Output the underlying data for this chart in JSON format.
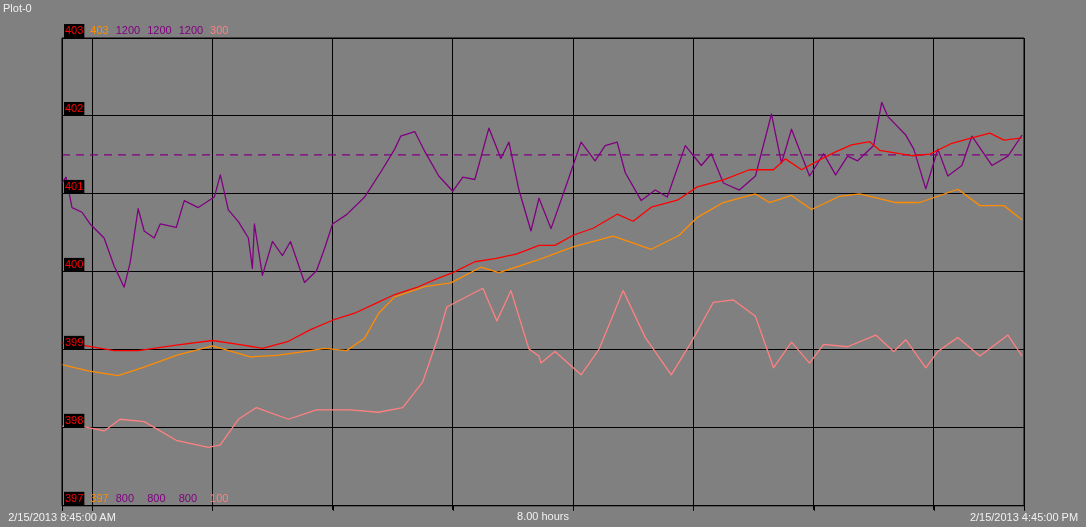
{
  "chart_data": {
    "type": "line",
    "title": "Plot-0",
    "xlabel": "8.00 hours",
    "grid": true,
    "legend": false,
    "marker": "none",
    "xlim": [
      "2013-02-15T08:45",
      "2013-02-15T16:45"
    ],
    "xticks": [
      {
        "value": "2013-02-15T08:45",
        "label": "2/15/2013 8:45:00 AM"
      },
      {
        "value": "2013-02-15T09:00",
        "label": null
      },
      {
        "value": "2013-02-15T10:00",
        "label": null
      },
      {
        "value": "2013-02-15T11:00",
        "label": null
      },
      {
        "value": "2013-02-15T12:00",
        "label": null
      },
      {
        "value": "2013-02-15T13:00",
        "label": null
      },
      {
        "value": "2013-02-15T14:00",
        "label": null
      },
      {
        "value": "2013-02-15T15:00",
        "label": null
      },
      {
        "value": "2013-02-15T16:00",
        "label": null
      },
      {
        "value": "2013-02-15T16:45",
        "label": "2/15/2013 4:45:00 PM"
      }
    ],
    "ylim": [
      397,
      403
    ],
    "yticks": [
      397,
      398,
      399,
      400,
      401,
      402,
      403
    ],
    "y2lim": [
      800,
      1200
    ],
    "y2ticks": [
      800,
      1200
    ],
    "y3lim": [
      100,
      300
    ],
    "y3ticks": [
      100,
      300
    ],
    "annotations": [
      "403",
      "397",
      "1200",
      "800",
      "1200",
      "800"
    ],
    "series": [
      {
        "color": "#ff0000",
        "axis": "y",
        "line_style": "solid",
        "x": [
          "2013-02-15T08:45",
          "2013-02-15T08:55",
          "2013-02-15T09:11",
          "2013-02-15T09:23",
          "2013-02-15T09:42",
          "2013-02-15T10:00",
          "2013-02-15T10:13",
          "2013-02-15T10:25",
          "2013-02-15T10:38",
          "2013-02-15T10:49",
          "2013-02-15T11:00",
          "2013-02-15T11:11",
          "2013-02-15T11:21",
          "2013-02-15T11:31",
          "2013-02-15T11:42",
          "2013-02-15T11:51",
          "2013-02-15T12:00",
          "2013-02-15T12:11",
          "2013-02-15T12:21",
          "2013-02-15T12:32",
          "2013-02-15T12:43",
          "2013-02-15T12:51",
          "2013-02-15T13:00",
          "2013-02-15T13:10",
          "2013-02-15T13:22",
          "2013-02-15T13:30",
          "2013-02-15T13:39",
          "2013-02-15T13:52",
          "2013-02-15T14:02",
          "2013-02-15T14:15",
          "2013-02-15T14:28",
          "2013-02-15T14:40",
          "2013-02-15T14:46",
          "2013-02-15T14:54",
          "2013-02-15T15:04",
          "2013-02-15T15:11",
          "2013-02-15T15:19",
          "2013-02-15T15:28",
          "2013-02-15T15:33",
          "2013-02-15T15:49",
          "2013-02-15T15:58",
          "2013-02-15T16:09",
          "2013-02-15T16:19",
          "2013-02-15T16:28",
          "2013-02-15T16:35",
          "2013-02-15T16:44"
        ],
        "values": [
          399.09,
          399.06,
          398.99,
          398.99,
          399.06,
          399.12,
          399.07,
          399.02,
          399.11,
          399.26,
          399.38,
          399.47,
          399.59,
          399.71,
          399.8,
          399.9,
          399.99,
          400.13,
          400.17,
          400.23,
          400.34,
          400.34,
          400.47,
          400.56,
          400.74,
          400.65,
          400.83,
          400.92,
          401.09,
          401.18,
          401.31,
          401.31,
          401.45,
          401.31,
          401.45,
          401.54,
          401.63,
          401.67,
          401.56,
          401.49,
          401.51,
          401.65,
          401.72,
          401.78,
          401.69,
          401.72
        ]
      },
      {
        "color": "#ff8c00",
        "axis": "y",
        "line_style": "solid",
        "x": [
          "2013-02-15T08:45",
          "2013-02-15T08:58",
          "2013-02-15T09:13",
          "2013-02-15T09:26",
          "2013-02-15T09:42",
          "2013-02-15T10:00",
          "2013-02-15T10:19",
          "2013-02-15T10:32",
          "2013-02-15T10:44",
          "2013-02-15T10:56",
          "2013-02-15T11:07",
          "2013-02-15T11:16",
          "2013-02-15T11:23",
          "2013-02-15T11:31",
          "2013-02-15T11:46",
          "2013-02-15T11:59",
          "2013-02-15T12:14",
          "2013-02-15T12:23",
          "2013-02-15T12:41",
          "2013-02-15T13:00",
          "2013-02-15T13:20",
          "2013-02-15T13:39",
          "2013-02-15T13:53",
          "2013-02-15T14:02",
          "2013-02-15T14:15",
          "2013-02-15T14:31",
          "2013-02-15T14:38",
          "2013-02-15T14:49",
          "2013-02-15T14:59",
          "2013-02-15T15:13",
          "2013-02-15T15:23",
          "2013-02-15T15:41",
          "2013-02-15T15:53",
          "2013-02-15T16:12",
          "2013-02-15T16:23",
          "2013-02-15T16:35",
          "2013-02-15T16:44"
        ],
        "values": [
          398.81,
          398.73,
          398.67,
          398.78,
          398.93,
          399.05,
          398.91,
          398.93,
          398.97,
          399.02,
          398.99,
          399.15,
          399.47,
          399.68,
          399.81,
          399.86,
          400.06,
          399.99,
          400.14,
          400.32,
          400.46,
          400.29,
          400.47,
          400.7,
          400.89,
          401.0,
          400.89,
          400.98,
          400.8,
          400.97,
          401.0,
          400.89,
          400.89,
          401.06,
          400.85,
          400.85,
          400.67
        ]
      },
      {
        "color": "#800080",
        "axis": "y2",
        "line_style": "solid",
        "x": [
          "2013-02-15T08:45",
          "2013-02-15T08:47",
          "2013-02-15T08:50",
          "2013-02-15T08:55",
          "2013-02-15T08:59",
          "2013-02-15T09:06",
          "2013-02-15T09:11",
          "2013-02-15T09:16",
          "2013-02-15T09:19",
          "2013-02-15T09:23",
          "2013-02-15T09:26",
          "2013-02-15T09:31",
          "2013-02-15T09:34",
          "2013-02-15T09:42",
          "2013-02-15T09:46",
          "2013-02-15T09:53",
          "2013-02-15T10:01",
          "2013-02-15T10:04",
          "2013-02-15T10:08",
          "2013-02-15T10:13",
          "2013-02-15T10:18",
          "2013-02-15T10:20",
          "2013-02-15T10:21",
          "2013-02-15T10:25",
          "2013-02-15T10:30",
          "2013-02-15T10:35",
          "2013-02-15T10:39",
          "2013-02-15T10:46",
          "2013-02-15T10:52",
          "2013-02-15T10:56",
          "2013-02-15T11:00",
          "2013-02-15T11:07",
          "2013-02-15T11:16",
          "2013-02-15T11:25",
          "2013-02-15T11:31",
          "2013-02-15T11:34",
          "2013-02-15T11:41",
          "2013-02-15T11:46",
          "2013-02-15T11:53",
          "2013-02-15T12:00",
          "2013-02-15T12:05",
          "2013-02-15T12:11",
          "2013-02-15T12:18",
          "2013-02-15T12:24",
          "2013-02-15T12:28",
          "2013-02-15T12:33",
          "2013-02-15T12:39",
          "2013-02-15T12:43",
          "2013-02-15T12:49",
          "2013-02-15T12:57",
          "2013-02-15T13:04",
          "2013-02-15T13:11",
          "2013-02-15T13:16",
          "2013-02-15T13:22",
          "2013-02-15T13:26",
          "2013-02-15T13:34",
          "2013-02-15T13:41",
          "2013-02-15T13:47",
          "2013-02-15T13:56",
          "2013-02-15T14:04",
          "2013-02-15T14:09",
          "2013-02-15T14:15",
          "2013-02-15T14:23",
          "2013-02-15T14:31",
          "2013-02-15T14:39",
          "2013-02-15T14:44",
          "2013-02-15T14:49",
          "2013-02-15T14:58",
          "2013-02-15T15:05",
          "2013-02-15T15:11",
          "2013-02-15T15:17",
          "2013-02-15T15:22",
          "2013-02-15T15:30",
          "2013-02-15T15:34",
          "2013-02-15T15:37",
          "2013-02-15T15:46",
          "2013-02-15T15:50",
          "2013-02-15T15:56",
          "2013-02-15T16:02",
          "2013-02-15T16:07",
          "2013-02-15T16:14",
          "2013-02-15T16:19",
          "2013-02-15T16:29",
          "2013-02-15T16:37",
          "2013-02-15T16:44"
        ],
        "values": [
          1076,
          1081,
          1055,
          1051,
          1041,
          1029,
          1005,
          987,
          1008,
          1054,
          1035,
          1029,
          1041,
          1038,
          1061,
          1055,
          1064,
          1083,
          1053,
          1043,
          1029,
          1003,
          1041,
          997,
          1026,
          1014,
          1026,
          991,
          1001,
          1020,
          1041,
          1049,
          1064,
          1088,
          1105,
          1116,
          1120,
          1103,
          1082,
          1069,
          1081,
          1079,
          1123,
          1097,
          1111,
          1070,
          1035,
          1063,
          1037,
          1076,
          1111,
          1095,
          1108,
          1111,
          1085,
          1061,
          1070,
          1064,
          1108,
          1091,
          1101,
          1076,
          1070,
          1082,
          1135,
          1093,
          1122,
          1082,
          1101,
          1083,
          1099,
          1095,
          1108,
          1145,
          1133,
          1117,
          1105,
          1071,
          1105,
          1082,
          1091,
          1116,
          1091,
          1099,
          1117
        ]
      },
      {
        "color": "#800080",
        "axis": "y2",
        "line_style": "dashed",
        "x": [
          "2013-02-15T08:45",
          "2013-02-15T16:45"
        ],
        "values": [
          1100,
          1100
        ]
      },
      {
        "color": "#ff8080",
        "axis": "y3",
        "line_style": "solid",
        "x": [
          "2013-02-15T08:45",
          "2013-02-15T08:55",
          "2013-02-15T09:06",
          "2013-02-15T09:14",
          "2013-02-15T09:26",
          "2013-02-15T09:42",
          "2013-02-15T09:58",
          "2013-02-15T10:04",
          "2013-02-15T10:13",
          "2013-02-15T10:22",
          "2013-02-15T10:38",
          "2013-02-15T10:52",
          "2013-02-15T11:09",
          "2013-02-15T11:23",
          "2013-02-15T11:35",
          "2013-02-15T11:45",
          "2013-02-15T11:53",
          "2013-02-15T11:57",
          "2013-02-15T12:15",
          "2013-02-15T12:22",
          "2013-02-15T12:29",
          "2013-02-15T12:38",
          "2013-02-15T12:43",
          "2013-02-15T12:44",
          "2013-02-15T12:51",
          "2013-02-15T13:04",
          "2013-02-15T13:13",
          "2013-02-15T13:25",
          "2013-02-15T13:36",
          "2013-02-15T13:49",
          "2013-02-15T13:59",
          "2013-02-15T14:10",
          "2013-02-15T14:20",
          "2013-02-15T14:31",
          "2013-02-15T14:40",
          "2013-02-15T14:49",
          "2013-02-15T14:58",
          "2013-02-15T15:05",
          "2013-02-15T15:17",
          "2013-02-15T15:31",
          "2013-02-15T15:40",
          "2013-02-15T15:46",
          "2013-02-15T15:56",
          "2013-02-15T16:02",
          "2013-02-15T16:12",
          "2013-02-15T16:23",
          "2013-02-15T16:37",
          "2013-02-15T16:44"
        ],
        "values": [
          134,
          134,
          132,
          137,
          136,
          128,
          125,
          126,
          137,
          142,
          137,
          141,
          141,
          140,
          142,
          153,
          173,
          185,
          193,
          179,
          192,
          167,
          164,
          161,
          166,
          156,
          167,
          192,
          172,
          156,
          170,
          187,
          188,
          181,
          159,
          170,
          161,
          169,
          168,
          173,
          166,
          171,
          159,
          166,
          172,
          164,
          173,
          164
        ]
      }
    ]
  }
}
